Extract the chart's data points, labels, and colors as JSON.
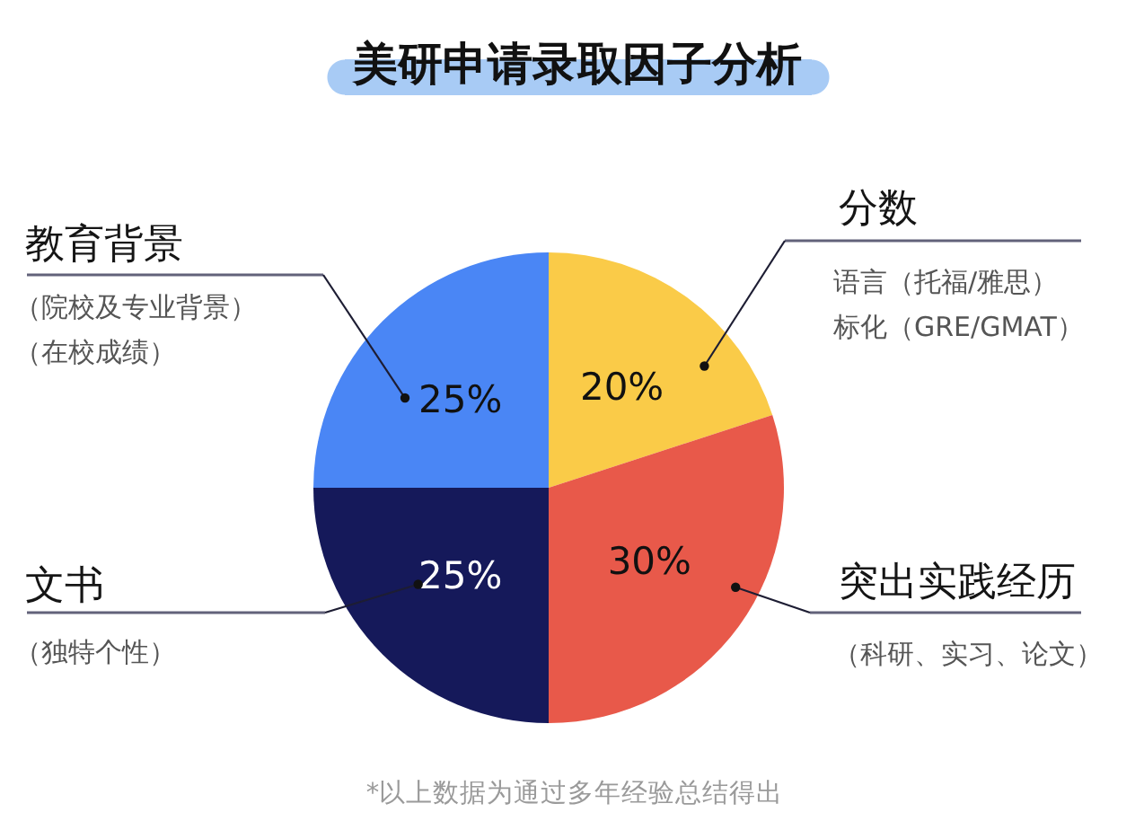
{
  "chart_data": {
    "type": "pie",
    "title": "美研申请录取因子分析",
    "categories": [
      "分数",
      "突出实践经历",
      "文书",
      "教育背景"
    ],
    "values": [
      20,
      30,
      25,
      25
    ],
    "colors": [
      "#facb48",
      "#e8594a",
      "#15195a",
      "#4a86f5"
    ],
    "value_labels": [
      "20%",
      "30%",
      "25%",
      "25%"
    ],
    "annotations": [
      {
        "text": "语言（托福/雅思）",
        "x": "分数"
      },
      {
        "text": "标化（GRE/GMAT）",
        "x": "分数"
      },
      {
        "text": "（科研、实习、论文）",
        "x": "突出实践经历"
      },
      {
        "text": "（独特个性）",
        "x": "文书"
      },
      {
        "text": "（院校及专业背景）",
        "x": "教育背景"
      },
      {
        "text": "（在校成绩）",
        "x": "教育背景"
      },
      "*以上数据为通过多年经验总结得出"
    ]
  }
}
